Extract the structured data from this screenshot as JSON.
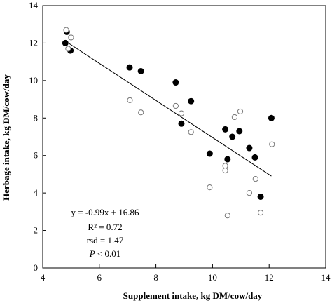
{
  "chart_data": {
    "type": "scatter",
    "title": "",
    "xlabel": "Supplement intake, kg DM/cow/day",
    "ylabel": "Herbage intake, kg DM/cow/day",
    "xlim": [
      4,
      14
    ],
    "ylim": [
      0,
      14
    ],
    "xticks": [
      "4",
      "6",
      "8",
      "10",
      "12",
      "14"
    ],
    "yticks": [
      "0",
      "2",
      "4",
      "6",
      "8",
      "10",
      "12",
      "14"
    ],
    "grid": false,
    "legend": "none",
    "series": [
      {
        "marker": "filled-circle",
        "color": "#000000",
        "points": [
          [
            4.85,
            12.6
          ],
          [
            4.8,
            12.0
          ],
          [
            4.98,
            11.6
          ],
          [
            7.07,
            10.7
          ],
          [
            7.47,
            10.5
          ],
          [
            8.7,
            9.9
          ],
          [
            9.24,
            8.9
          ],
          [
            8.9,
            7.7
          ],
          [
            9.9,
            6.1
          ],
          [
            10.45,
            7.4
          ],
          [
            10.7,
            7.0
          ],
          [
            10.95,
            7.3
          ],
          [
            10.53,
            5.8
          ],
          [
            11.3,
            6.4
          ],
          [
            11.5,
            5.9
          ],
          [
            11.7,
            3.8
          ],
          [
            12.08,
            8.0
          ]
        ]
      },
      {
        "marker": "open-circle",
        "color": "#777777",
        "points": [
          [
            4.83,
            12.7
          ],
          [
            4.9,
            11.7
          ],
          [
            5.0,
            12.3
          ],
          [
            7.08,
            8.95
          ],
          [
            7.47,
            8.3
          ],
          [
            8.7,
            8.65
          ],
          [
            8.9,
            8.25
          ],
          [
            9.24,
            7.25
          ],
          [
            9.9,
            4.3
          ],
          [
            10.45,
            5.45
          ],
          [
            10.45,
            5.2
          ],
          [
            10.53,
            2.8
          ],
          [
            10.78,
            8.05
          ],
          [
            10.98,
            8.35
          ],
          [
            11.3,
            4.0
          ],
          [
            11.52,
            4.75
          ],
          [
            11.7,
            2.95
          ],
          [
            12.1,
            6.6
          ]
        ]
      }
    ],
    "trendline": {
      "slope": -0.99,
      "intercept": 16.86,
      "x_range": [
        4.85,
        12.08
      ]
    },
    "annotations": {
      "equation": "y = -0.99x + 16.86",
      "r2": "R² = 0.72",
      "rsd": "rsd = 1.47",
      "p_italic": "P",
      "p_rest": " < 0.01"
    }
  }
}
